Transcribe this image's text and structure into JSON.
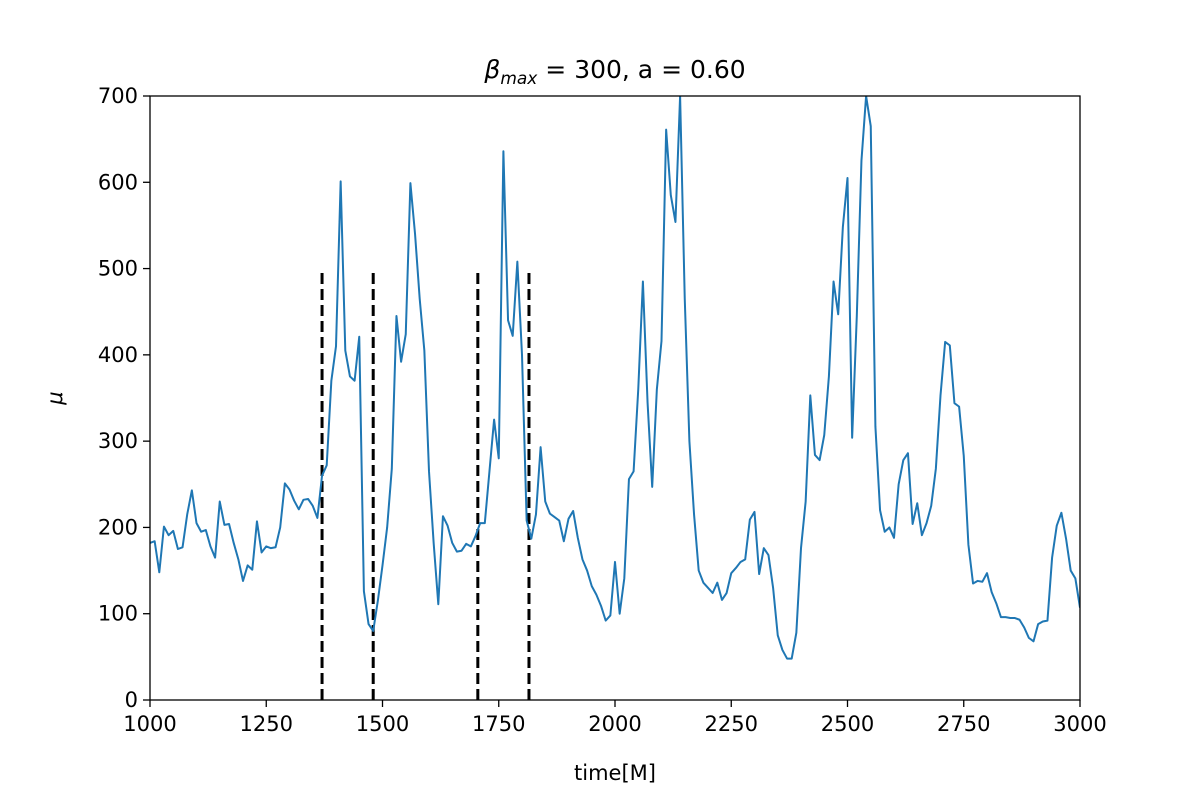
{
  "chart_data": {
    "type": "line",
    "title": "β_max = 300, a = 0.60",
    "title_parts": {
      "symbol": "β",
      "subscript": "max",
      "rest": " = 300, a = 0.60"
    },
    "xlabel": "time[M]",
    "ylabel": "μ",
    "xlim": [
      1000,
      3000
    ],
    "ylim": [
      0,
      700
    ],
    "xticks": [
      1000,
      1250,
      1500,
      1750,
      2000,
      2250,
      2500,
      2750,
      3000
    ],
    "yticks": [
      0,
      100,
      200,
      300,
      400,
      500,
      600,
      700
    ],
    "grid": false,
    "legend": "none",
    "series": [
      {
        "color": "#1f77b4",
        "x": [
          1000,
          1010,
          1020,
          1030,
          1040,
          1050,
          1060,
          1070,
          1080,
          1090,
          1100,
          1110,
          1120,
          1130,
          1140,
          1150,
          1160,
          1170,
          1180,
          1190,
          1200,
          1210,
          1220,
          1230,
          1240,
          1250,
          1260,
          1270,
          1280,
          1290,
          1300,
          1310,
          1320,
          1330,
          1340,
          1350,
          1360,
          1370,
          1380,
          1390,
          1400,
          1410,
          1420,
          1430,
          1440,
          1450,
          1460,
          1470,
          1480,
          1490,
          1500,
          1510,
          1520,
          1530,
          1540,
          1550,
          1560,
          1570,
          1580,
          1590,
          1600,
          1610,
          1620,
          1630,
          1640,
          1650,
          1660,
          1670,
          1680,
          1690,
          1700,
          1710,
          1720,
          1730,
          1740,
          1750,
          1760,
          1770,
          1780,
          1790,
          1800,
          1810,
          1820,
          1830,
          1840,
          1850,
          1860,
          1870,
          1880,
          1890,
          1900,
          1910,
          1920,
          1930,
          1940,
          1950,
          1960,
          1970,
          1980,
          1990,
          2000,
          2010,
          2020,
          2030,
          2040,
          2050,
          2060,
          2070,
          2080,
          2090,
          2100,
          2110,
          2120,
          2130,
          2140,
          2150,
          2160,
          2170,
          2180,
          2190,
          2200,
          2210,
          2220,
          2230,
          2240,
          2250,
          2260,
          2270,
          2280,
          2290,
          2300,
          2310,
          2320,
          2330,
          2340,
          2350,
          2360,
          2370,
          2380,
          2390,
          2400,
          2410,
          2420,
          2430,
          2440,
          2450,
          2460,
          2470,
          2480,
          2490,
          2500,
          2510,
          2520,
          2530,
          2540,
          2550,
          2560,
          2570,
          2580,
          2590,
          2600,
          2610,
          2620,
          2630,
          2640,
          2650,
          2660,
          2670,
          2680,
          2690,
          2700,
          2710,
          2720,
          2730,
          2740,
          2750,
          2760,
          2770,
          2780,
          2790,
          2800,
          2810,
          2820,
          2830,
          2840,
          2850,
          2860,
          2870,
          2880,
          2890,
          2900,
          2910,
          2920,
          2930,
          2940,
          2950,
          2960,
          2970,
          2980,
          2990,
          3000
        ],
        "y": [
          182,
          184,
          148,
          201,
          191,
          196,
          175,
          177,
          215,
          243,
          205,
          195,
          197,
          178,
          165,
          230,
          203,
          204,
          182,
          163,
          138,
          156,
          151,
          207,
          171,
          178,
          176,
          177,
          200,
          251,
          244,
          231,
          221,
          232,
          233,
          225,
          211,
          260,
          272,
          370,
          410,
          601,
          405,
          375,
          370,
          421,
          126,
          88,
          80,
          115,
          156,
          200,
          268,
          445,
          392,
          424,
          599,
          540,
          465,
          405,
          265,
          182,
          111,
          213,
          202,
          182,
          172,
          173,
          181,
          178,
          190,
          205,
          205,
          265,
          325,
          280,
          636,
          440,
          422,
          508,
          400,
          208,
          187,
          215,
          293,
          230,
          216,
          212,
          208,
          184,
          210,
          219,
          188,
          163,
          150,
          132,
          122,
          109,
          92,
          98,
          160,
          100,
          141,
          256,
          265,
          360,
          485,
          345,
          247,
          360,
          416,
          661,
          585,
          554,
          700,
          465,
          300,
          215,
          150,
          136,
          130,
          124,
          136,
          116,
          124,
          147,
          153,
          160,
          163,
          209,
          218,
          146,
          176,
          168,
          130,
          75,
          58,
          48,
          48,
          78,
          176,
          230,
          353,
          284,
          278,
          307,
          375,
          485,
          447,
          548,
          605,
          304,
          445,
          625,
          700,
          665,
          317,
          220,
          195,
          200,
          188,
          250,
          278,
          286,
          204,
          228,
          191,
          205,
          225,
          268,
          353,
          415,
          411,
          344,
          340,
          283,
          180,
          135,
          138,
          137,
          147,
          125,
          112,
          96,
          96,
          95,
          95,
          93,
          84,
          72,
          68,
          88,
          91,
          92,
          165,
          202,
          217,
          187,
          150,
          141,
          107
        ]
      }
    ],
    "vertical_lines": {
      "x": [
        1370,
        1480,
        1705,
        1815
      ],
      "y_from": 0,
      "y_to": 500,
      "color": "#000000",
      "style": "dashed"
    }
  }
}
